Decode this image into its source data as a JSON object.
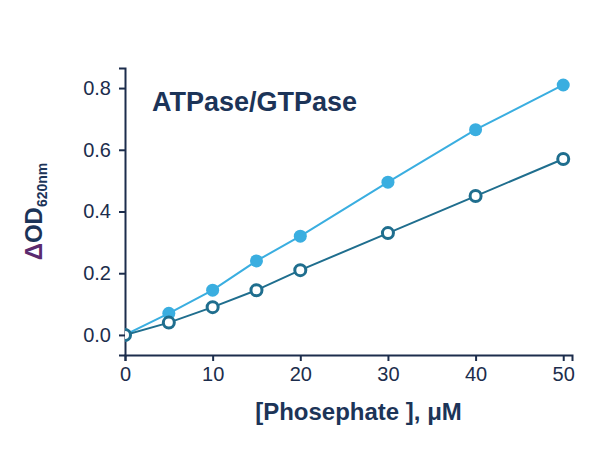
{
  "chart_data": {
    "type": "line",
    "title": "ATPase/GTPase",
    "x_label": "[Phosephate ], μM",
    "y_label": "ΔOD620nm",
    "x": [
      0,
      5,
      10,
      15,
      20,
      30,
      40,
      50
    ],
    "series": [
      {
        "color": "#3aaee0",
        "marker": "circle",
        "values": [
          0,
          0.07,
          0.145,
          0.24,
          0.32,
          0.495,
          0.665,
          0.81
        ]
      },
      {
        "color": "#1f6e8e",
        "marker": "open-circle",
        "values": [
          0,
          0.04,
          0.09,
          0.145,
          0.21,
          0.33,
          0.45,
          0.57
        ]
      }
    ],
    "xlim": [
      0,
      51
    ],
    "ylim": [
      -0.065,
      0.865
    ],
    "xticks": [
      0,
      10,
      20,
      30,
      40,
      50
    ],
    "yticks": [
      {
        "value": 0,
        "label": "0.0"
      },
      0.2,
      0.4,
      0.6,
      0.8
    ],
    "grid": false
  }
}
